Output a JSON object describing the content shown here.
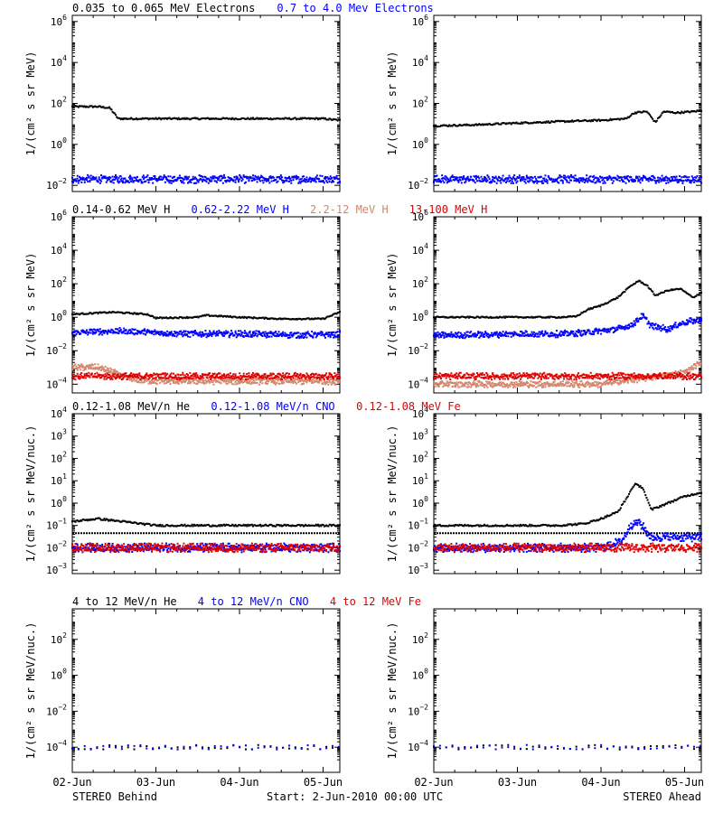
{
  "footer": {
    "left": "STEREO Behind",
    "center": "Start:  2-Jun-2010 00:00 UTC",
    "right": "STEREO Ahead"
  },
  "x_ticks": [
    "02-Jun",
    "03-Jun",
    "04-Jun",
    "05-Jun"
  ],
  "colors": {
    "black": "#000000",
    "blue": "#0000ff",
    "salmon": "#d2876c",
    "red": "#e00000"
  },
  "chart_data": [
    {
      "type": "scatter",
      "row": 1,
      "spacecraft": "STEREO Behind",
      "ylabel": "1/(cm² s sr MeV)",
      "yscale": "log",
      "ylim": [
        0.005,
        2000000
      ],
      "yticks": [
        {
          "e": -2
        },
        {
          "e": 0
        },
        {
          "e": 2
        },
        {
          "e": 4
        },
        {
          "e": 6
        }
      ],
      "xlim": [
        0,
        3.2
      ],
      "x_unit": "days since 02-Jun",
      "legend": [
        {
          "name": "0.035 to 0.065 MeV Electrons",
          "color": "#000000"
        },
        {
          "name": "0.7 to 4.0 Mev Electrons",
          "color": "#0000ff"
        }
      ],
      "series": [
        {
          "name": "0.035 to 0.065 MeV Electrons",
          "color": "#000000",
          "x": [
            0,
            0.3,
            0.45,
            0.55,
            1.0,
            2.0,
            3.0,
            3.2
          ],
          "y": [
            70,
            70,
            60,
            18,
            18,
            18,
            18,
            15
          ]
        },
        {
          "name": "0.7 to 4.0 Mev Electrons",
          "color": "#0000ff",
          "x": [
            0,
            0.5,
            1.0,
            1.5,
            2.0,
            2.5,
            3.0,
            3.2
          ],
          "y": [
            0.02,
            0.02,
            0.02,
            0.02,
            0.02,
            0.02,
            0.02,
            0.02
          ]
        }
      ]
    },
    {
      "type": "scatter",
      "row": 1,
      "spacecraft": "STEREO Ahead",
      "ylabel": "1/(cm² s sr MeV)",
      "yscale": "log",
      "ylim": [
        0.005,
        2000000
      ],
      "yticks": [
        {
          "e": -2
        },
        {
          "e": 0
        },
        {
          "e": 2
        },
        {
          "e": 4
        },
        {
          "e": 6
        }
      ],
      "xlim": [
        0,
        3.2
      ],
      "x_unit": "days since 02-Jun",
      "series": [
        {
          "name": "0.035 to 0.065 MeV Electrons",
          "color": "#000000",
          "x": [
            0,
            0.5,
            1.0,
            1.5,
            2.0,
            2.3,
            2.4,
            2.55,
            2.65,
            2.75,
            2.9,
            3.1,
            3.2
          ],
          "y": [
            8,
            9,
            11,
            13,
            15,
            18,
            35,
            40,
            12,
            40,
            35,
            40,
            45
          ]
        },
        {
          "name": "0.7 to 4.0 Mev Electrons",
          "color": "#0000ff",
          "x": [
            0,
            0.5,
            1.0,
            1.5,
            2.0,
            2.5,
            3.0,
            3.2
          ],
          "y": [
            0.02,
            0.02,
            0.02,
            0.02,
            0.02,
            0.02,
            0.02,
            0.02
          ]
        }
      ]
    },
    {
      "type": "scatter",
      "row": 2,
      "spacecraft": "STEREO Behind",
      "ylabel": "1/(cm² s sr MeV)",
      "yscale": "log",
      "ylim": [
        3e-05,
        1000000
      ],
      "yticks": [
        {
          "e": -4
        },
        {
          "e": -2
        },
        {
          "e": 0
        },
        {
          "e": 2
        },
        {
          "e": 4
        },
        {
          "e": 6
        }
      ],
      "xlim": [
        0,
        3.2
      ],
      "x_unit": "days since 02-Jun",
      "legend": [
        {
          "name": "0.14-0.62 MeV H",
          "color": "#000000"
        },
        {
          "name": "0.62-2.22 MeV H",
          "color": "#0000ff"
        },
        {
          "name": "2.2-12 MeV H",
          "color": "#d2876c"
        },
        {
          "name": "13-100 MeV H",
          "color": "#e00000"
        }
      ],
      "series": [
        {
          "name": "0.14-0.62 MeV H",
          "color": "#000000",
          "x": [
            0,
            0.3,
            0.5,
            0.9,
            1.0,
            1.5,
            1.6,
            2.0,
            2.5,
            3.0,
            3.2
          ],
          "y": [
            1.5,
            1.8,
            2,
            1.5,
            0.9,
            1.0,
            1.3,
            1.0,
            0.8,
            0.8,
            2.0
          ]
        },
        {
          "name": "0.62-2.22 MeV H",
          "color": "#0000ff",
          "x": [
            0,
            0.5,
            1.0,
            1.5,
            2.0,
            2.5,
            3.0,
            3.2
          ],
          "y": [
            0.12,
            0.15,
            0.12,
            0.1,
            0.1,
            0.09,
            0.09,
            0.1
          ]
        },
        {
          "name": "2.2-12 MeV H",
          "color": "#d2876c",
          "x": [
            0,
            0.3,
            0.5,
            0.7,
            1.0,
            2.0,
            3.2
          ],
          "y": [
            0.001,
            0.001,
            0.0005,
            0.0002,
            0.00015,
            0.00015,
            0.00015
          ]
        },
        {
          "name": "13-100 MeV H",
          "color": "#e00000",
          "x": [
            0,
            1.0,
            2.0,
            3.2
          ],
          "y": [
            0.0003,
            0.0003,
            0.0003,
            0.0003
          ]
        }
      ]
    },
    {
      "type": "scatter",
      "row": 2,
      "spacecraft": "STEREO Ahead",
      "ylabel": "1/(cm² s sr MeV)",
      "yscale": "log",
      "ylim": [
        3e-05,
        1000000
      ],
      "yticks": [
        {
          "e": -4
        },
        {
          "e": -2
        },
        {
          "e": 0
        },
        {
          "e": 2
        },
        {
          "e": 4
        },
        {
          "e": 6
        }
      ],
      "xlim": [
        0,
        3.2
      ],
      "x_unit": "days since 02-Jun",
      "series": [
        {
          "name": "0.14-0.62 MeV H",
          "color": "#000000",
          "x": [
            0,
            0.5,
            1.0,
            1.5,
            1.7,
            1.85,
            2.0,
            2.2,
            2.35,
            2.45,
            2.55,
            2.65,
            2.8,
            2.95,
            3.1,
            3.2
          ],
          "y": [
            1,
            1,
            1,
            1,
            1.1,
            3,
            5,
            15,
            70,
            150,
            80,
            20,
            40,
            50,
            15,
            30
          ]
        },
        {
          "name": "0.62-2.22 MeV H",
          "color": "#0000ff",
          "x": [
            0,
            0.5,
            1.0,
            1.5,
            1.8,
            2.0,
            2.2,
            2.35,
            2.5,
            2.6,
            2.8,
            3.0,
            3.2
          ],
          "y": [
            0.08,
            0.09,
            0.1,
            0.1,
            0.12,
            0.15,
            0.2,
            0.3,
            1.2,
            0.3,
            0.2,
            0.5,
            0.7
          ]
        },
        {
          "name": "2.2-12 MeV H",
          "color": "#d2876c",
          "x": [
            0,
            1.0,
            2.0,
            3.0,
            3.2
          ],
          "y": [
            0.0001,
            0.0001,
            0.0001,
            0.0005,
            0.002
          ]
        },
        {
          "name": "13-100 MeV H",
          "color": "#e00000",
          "x": [
            0,
            1.0,
            2.0,
            3.2
          ],
          "y": [
            0.0003,
            0.0003,
            0.0003,
            0.0003
          ]
        }
      ]
    },
    {
      "type": "scatter",
      "row": 3,
      "spacecraft": "STEREO Behind",
      "ylabel": "1/(cm² s sr MeV/nuc.)",
      "yscale": "log",
      "ylim": [
        0.0007,
        10000
      ],
      "yticks": [
        {
          "e": -3
        },
        {
          "e": -2
        },
        {
          "e": -1
        },
        {
          "e": 0
        },
        {
          "e": 1
        },
        {
          "e": 2
        },
        {
          "e": 3
        },
        {
          "e": 4
        }
      ],
      "xlim": [
        0,
        3.2
      ],
      "x_unit": "days since 02-Jun",
      "legend": [
        {
          "name": "0.12-1.08 MeV/n He",
          "color": "#000000"
        },
        {
          "name": "0.12-1.08 MeV/n CNO",
          "color": "#0000ff"
        },
        {
          "name": "0.12-1.08 MeV Fe",
          "color": "#e00000"
        }
      ],
      "series": [
        {
          "name": "0.12-1.08 MeV/n He",
          "color": "#000000",
          "x": [
            0,
            0.3,
            0.6,
            1.0,
            1.5,
            2.0,
            2.5,
            3.0,
            3.2
          ],
          "y": [
            0.15,
            0.2,
            0.15,
            0.1,
            0.1,
            0.1,
            0.1,
            0.1,
            0.1
          ]
        },
        {
          "name": "0.12-1.08 MeV/n CNO",
          "color": "#0000ff",
          "x": [
            0,
            1.0,
            2.0,
            3.2
          ],
          "y": [
            0.01,
            0.01,
            0.01,
            0.01
          ]
        },
        {
          "name": "0.12-1.08 MeV Fe",
          "color": "#e00000",
          "x": [
            0,
            1.0,
            2.0,
            3.2
          ],
          "y": [
            0.01,
            0.01,
            0.01,
            0.01
          ]
        }
      ],
      "baseline": 0.045
    },
    {
      "type": "scatter",
      "row": 3,
      "spacecraft": "STEREO Ahead",
      "ylabel": "1/(cm² s sr MeV/nuc.)",
      "yscale": "log",
      "ylim": [
        0.0007,
        10000
      ],
      "yticks": [
        {
          "e": -3
        },
        {
          "e": -2
        },
        {
          "e": -1
        },
        {
          "e": 0
        },
        {
          "e": 1
        },
        {
          "e": 2
        },
        {
          "e": 3
        },
        {
          "e": 4
        }
      ],
      "xlim": [
        0,
        3.2
      ],
      "x_unit": "days since 02-Jun",
      "series": [
        {
          "name": "0.12-1.08 MeV/n He",
          "color": "#000000",
          "x": [
            0,
            0.5,
            1.0,
            1.5,
            1.8,
            2.0,
            2.2,
            2.3,
            2.4,
            2.5,
            2.6,
            2.8,
            3.0,
            3.2
          ],
          "y": [
            0.1,
            0.1,
            0.1,
            0.1,
            0.12,
            0.2,
            0.4,
            1.5,
            7,
            5,
            0.5,
            1,
            2,
            3
          ]
        },
        {
          "name": "0.12-1.08 MeV/n CNO",
          "color": "#0000ff",
          "x": [
            0,
            1.0,
            2.0,
            2.25,
            2.35,
            2.45,
            2.6,
            3.2
          ],
          "y": [
            0.01,
            0.01,
            0.01,
            0.02,
            0.1,
            0.15,
            0.03,
            0.03
          ]
        },
        {
          "name": "0.12-1.08 MeV Fe",
          "color": "#e00000",
          "x": [
            0,
            1.0,
            2.0,
            3.2
          ],
          "y": [
            0.01,
            0.01,
            0.01,
            0.01
          ]
        }
      ],
      "baseline": 0.045
    },
    {
      "type": "scatter",
      "row": 4,
      "spacecraft": "STEREO Behind",
      "ylabel": "1/(cm² s sr MeV/nuc.)",
      "yscale": "log",
      "ylim": [
        4e-06,
        5000
      ],
      "yticks": [
        {
          "e": -4
        },
        {
          "e": -2
        },
        {
          "e": 0
        },
        {
          "e": 2
        }
      ],
      "xlim": [
        0,
        3.2
      ],
      "x_unit": "days since 02-Jun",
      "legend": [
        {
          "name": "4 to 12 MeV/n He",
          "color": "#000000"
        },
        {
          "name": "4 to 12 MeV/n CNO",
          "color": "#0000ff"
        },
        {
          "name": "4 to 12 MeV Fe",
          "color": "#e00000"
        }
      ],
      "series": [
        {
          "name": "4 to 12 MeV/n He",
          "color": "#000000",
          "x": [
            0,
            1.0,
            2.0,
            3.2
          ],
          "y": [
            0.0001,
            0.0001,
            0.0001,
            0.0001
          ]
        },
        {
          "name": "4 to 12 MeV/n CNO",
          "color": "#0000ff",
          "x": [
            0,
            1.0,
            2.0,
            3.2
          ],
          "y": [
            0.0001,
            0.0001,
            0.0001,
            0.0001
          ]
        }
      ]
    },
    {
      "type": "scatter",
      "row": 4,
      "spacecraft": "STEREO Ahead",
      "ylabel": "1/(cm² s sr MeV/nuc.)",
      "yscale": "log",
      "ylim": [
        4e-06,
        5000
      ],
      "yticks": [
        {
          "e": -4
        },
        {
          "e": -2
        },
        {
          "e": 0
        },
        {
          "e": 2
        }
      ],
      "xlim": [
        0,
        3.2
      ],
      "x_unit": "days since 02-Jun",
      "series": [
        {
          "name": "4 to 12 MeV/n He",
          "color": "#000000",
          "x": [
            0,
            1.0,
            2.0,
            3.2
          ],
          "y": [
            0.0001,
            0.0001,
            0.0001,
            0.0001
          ]
        },
        {
          "name": "4 to 12 MeV/n CNO",
          "color": "#0000ff",
          "x": [
            0,
            1.0,
            2.0,
            3.2
          ],
          "y": [
            0.0001,
            0.0001,
            0.0001,
            0.0001
          ]
        }
      ]
    }
  ]
}
